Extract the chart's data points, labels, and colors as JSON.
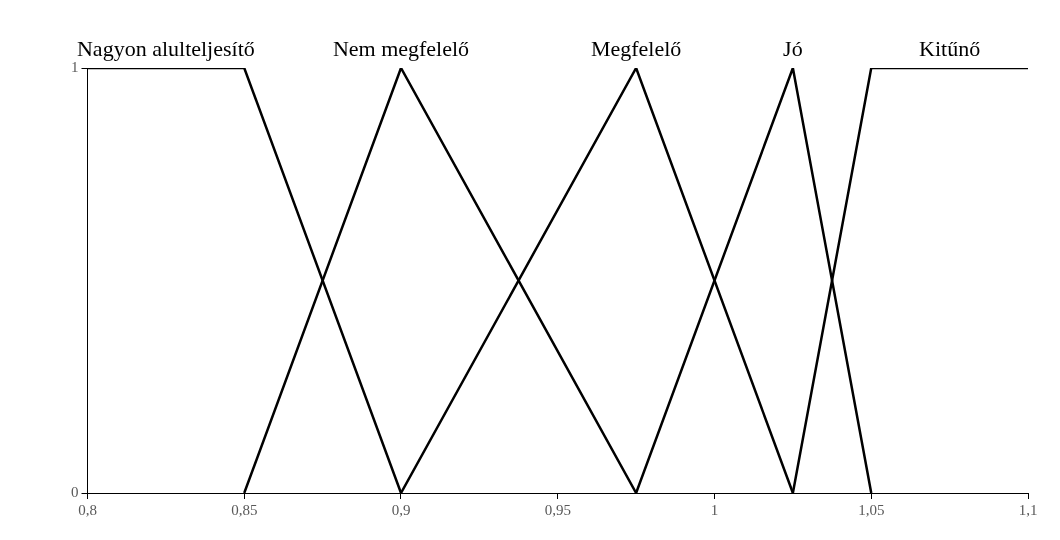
{
  "chart_data": {
    "type": "line",
    "xlim": [
      0.8,
      1.1
    ],
    "xticks": [
      {
        "value": 0.8,
        "label": "0,8"
      },
      {
        "value": 0.85,
        "label": "0,85"
      },
      {
        "value": 0.9,
        "label": "0,9"
      },
      {
        "value": 0.95,
        "label": "0,95"
      },
      {
        "value": 1,
        "label": "1"
      },
      {
        "value": 1.05,
        "label": "1,05"
      },
      {
        "value": 1.1,
        "label": "1,1"
      }
    ],
    "ylim": [
      0,
      1
    ],
    "yticks": [
      0,
      1
    ],
    "grid": false,
    "legend": false,
    "marker": "none",
    "line_style": "solid",
    "series": [
      {
        "name": "Nagyon alulteljesítő",
        "color": "#000000",
        "x": [
          0.8,
          0.85,
          0.9
        ],
        "values": [
          1,
          1,
          0
        ]
      },
      {
        "name": "Nem megfelelő",
        "color": "#000000",
        "x": [
          0.85,
          0.9,
          0.975
        ],
        "values": [
          0,
          1,
          0
        ]
      },
      {
        "name": "Megfelelő",
        "color": "#000000",
        "x": [
          0.9,
          0.975,
          1.025
        ],
        "values": [
          0,
          1,
          0
        ]
      },
      {
        "name": "Jó",
        "color": "#000000",
        "x": [
          0.975,
          1.025,
          1.05
        ],
        "values": [
          0,
          1,
          0
        ]
      },
      {
        "name": "Kitűnő",
        "color": "#000000",
        "x": [
          1.025,
          1.05,
          1.1
        ],
        "values": [
          0,
          1,
          1
        ]
      }
    ]
  }
}
